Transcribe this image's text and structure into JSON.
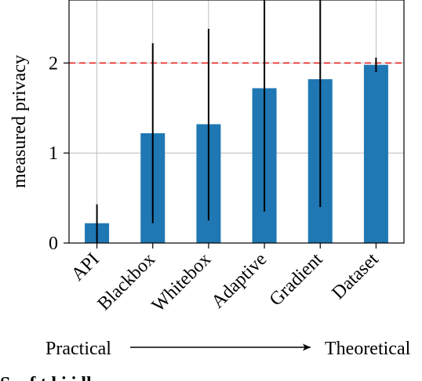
{
  "chart_data": {
    "type": "bar",
    "categories": [
      "API",
      "Blackbox",
      "Whitebox",
      "Adaptive",
      "Gradient",
      "Dataset"
    ],
    "values": [
      0.22,
      1.22,
      1.32,
      1.72,
      1.82,
      1.98
    ],
    "error_low": [
      0.0,
      0.22,
      0.25,
      0.35,
      0.4,
      1.9
    ],
    "error_high": [
      0.43,
      2.22,
      2.38,
      2.7,
      2.7,
      2.06
    ],
    "reference_line": {
      "y": 2,
      "color": "#e8302c",
      "style": "dashed"
    },
    "ylabel": "measured privacy",
    "xlabel": "",
    "ylim": [
      0,
      2.7
    ],
    "yticks": [
      0,
      1,
      2
    ],
    "grid": true,
    "bar_color": "#1f77b4",
    "bottom_left_label": "Practical",
    "bottom_right_label": "Theoretical",
    "caption_partial": "S    y  f         t     l  i       i  ll"
  }
}
